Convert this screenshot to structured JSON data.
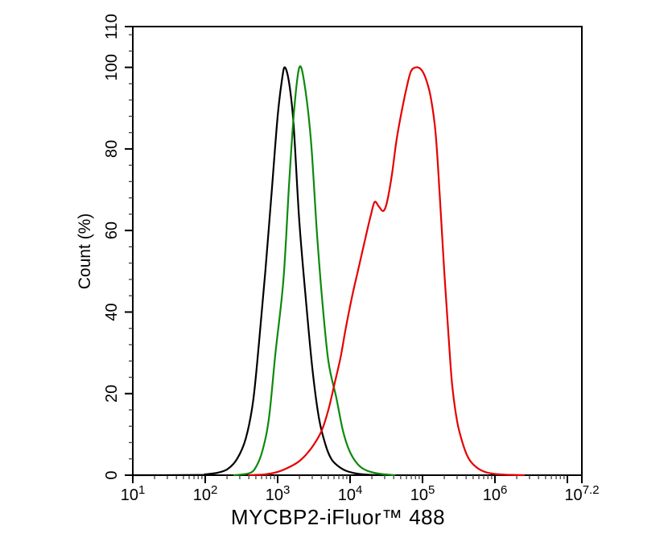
{
  "chart_data": {
    "type": "line",
    "subtype": "flow-cytometry-histogram-overlay",
    "title": "",
    "xlabel": "MYCBP2-iFluor™ 488",
    "ylabel": "Count (%)",
    "grid": false,
    "legend": "none",
    "frame_color": "#000000",
    "x_axis": {
      "scale": "log10",
      "lim_log": [
        1.0,
        7.2
      ],
      "major_ticks": [
        {
          "log": 1.0,
          "base": "10",
          "exp": "1"
        },
        {
          "log": 2.0,
          "base": "10",
          "exp": "2"
        },
        {
          "log": 3.0,
          "base": "10",
          "exp": "3"
        },
        {
          "log": 4.0,
          "base": "10",
          "exp": "4"
        },
        {
          "log": 5.0,
          "base": "10",
          "exp": "5"
        },
        {
          "log": 6.0,
          "base": "10",
          "exp": "6"
        },
        {
          "log": 7.0,
          "base": "",
          "exp": ""
        },
        {
          "log": 7.2,
          "base": "10",
          "exp": "7.2"
        }
      ],
      "minor_mantissas": [
        2,
        3,
        4,
        5,
        6,
        7,
        8,
        9
      ],
      "minor_decades": [
        1,
        2,
        3,
        4,
        5,
        6
      ]
    },
    "y_axis": {
      "lim": [
        0,
        110
      ],
      "major_ticks": [
        0,
        20,
        40,
        60,
        80,
        100,
        110
      ],
      "minor_step": 4
    },
    "series": [
      {
        "name": "black",
        "color": "#000000",
        "peak_log": 3.1,
        "peak_pct": 100,
        "points": [
          [
            1.0,
            0
          ],
          [
            1.9,
            0.05
          ],
          [
            2.0,
            0.2
          ],
          [
            2.17,
            0.6
          ],
          [
            2.31,
            1.5
          ],
          [
            2.44,
            4
          ],
          [
            2.56,
            9
          ],
          [
            2.66,
            18
          ],
          [
            2.74,
            32
          ],
          [
            2.83,
            50
          ],
          [
            2.92,
            70
          ],
          [
            3.0,
            88
          ],
          [
            3.06,
            97
          ],
          [
            3.1,
            100
          ],
          [
            3.16,
            96
          ],
          [
            3.22,
            86
          ],
          [
            3.3,
            62
          ],
          [
            3.39,
            43
          ],
          [
            3.48,
            26
          ],
          [
            3.57,
            14
          ],
          [
            3.66,
            7.5
          ],
          [
            3.74,
            4
          ],
          [
            3.83,
            2.3
          ],
          [
            3.94,
            1.1
          ],
          [
            4.09,
            0.4
          ],
          [
            4.26,
            0.1
          ],
          [
            4.45,
            0
          ]
        ]
      },
      {
        "name": "green",
        "color": "#0b8a0b",
        "peak_log": 3.3,
        "peak_pct": 100,
        "points": [
          [
            2.4,
            0
          ],
          [
            2.61,
            0.5
          ],
          [
            2.7,
            2
          ],
          [
            2.79,
            6
          ],
          [
            2.88,
            14
          ],
          [
            2.97,
            30
          ],
          [
            3.08,
            48
          ],
          [
            3.16,
            72
          ],
          [
            3.23,
            90
          ],
          [
            3.3,
            100
          ],
          [
            3.37,
            96
          ],
          [
            3.46,
            82
          ],
          [
            3.54,
            60
          ],
          [
            3.61,
            44
          ],
          [
            3.7,
            28
          ],
          [
            3.81,
            19
          ],
          [
            3.9,
            11
          ],
          [
            3.99,
            6
          ],
          [
            4.1,
            2.8
          ],
          [
            4.22,
            1.2
          ],
          [
            4.39,
            0.4
          ],
          [
            4.61,
            0
          ]
        ]
      },
      {
        "name": "red",
        "color": "#e60000",
        "peak_log": 4.91,
        "peak_pct": 100,
        "shoulder_log": 4.34,
        "shoulder_pct": 67,
        "points": [
          [
            2.6,
            0
          ],
          [
            2.83,
            0.2
          ],
          [
            3.0,
            0.8
          ],
          [
            3.14,
            1.8
          ],
          [
            3.28,
            3.2
          ],
          [
            3.39,
            5
          ],
          [
            3.5,
            7.5
          ],
          [
            3.61,
            11
          ],
          [
            3.7,
            16
          ],
          [
            3.78,
            22
          ],
          [
            3.87,
            29
          ],
          [
            3.94,
            36
          ],
          [
            4.03,
            44
          ],
          [
            4.12,
            51
          ],
          [
            4.21,
            58
          ],
          [
            4.29,
            64
          ],
          [
            4.34,
            67
          ],
          [
            4.4,
            65.8
          ],
          [
            4.46,
            64.8
          ],
          [
            4.51,
            67
          ],
          [
            4.58,
            74
          ],
          [
            4.64,
            82
          ],
          [
            4.71,
            89
          ],
          [
            4.78,
            95
          ],
          [
            4.84,
            99
          ],
          [
            4.91,
            100
          ],
          [
            4.98,
            99.5
          ],
          [
            5.04,
            97.5
          ],
          [
            5.11,
            93
          ],
          [
            5.18,
            84
          ],
          [
            5.24,
            68
          ],
          [
            5.3,
            50
          ],
          [
            5.36,
            34
          ],
          [
            5.41,
            22
          ],
          [
            5.48,
            13
          ],
          [
            5.56,
            7.5
          ],
          [
            5.64,
            4
          ],
          [
            5.74,
            2
          ],
          [
            5.86,
            0.8
          ],
          [
            6.0,
            0.3
          ],
          [
            6.17,
            0.1
          ],
          [
            6.4,
            0
          ]
        ]
      }
    ]
  }
}
